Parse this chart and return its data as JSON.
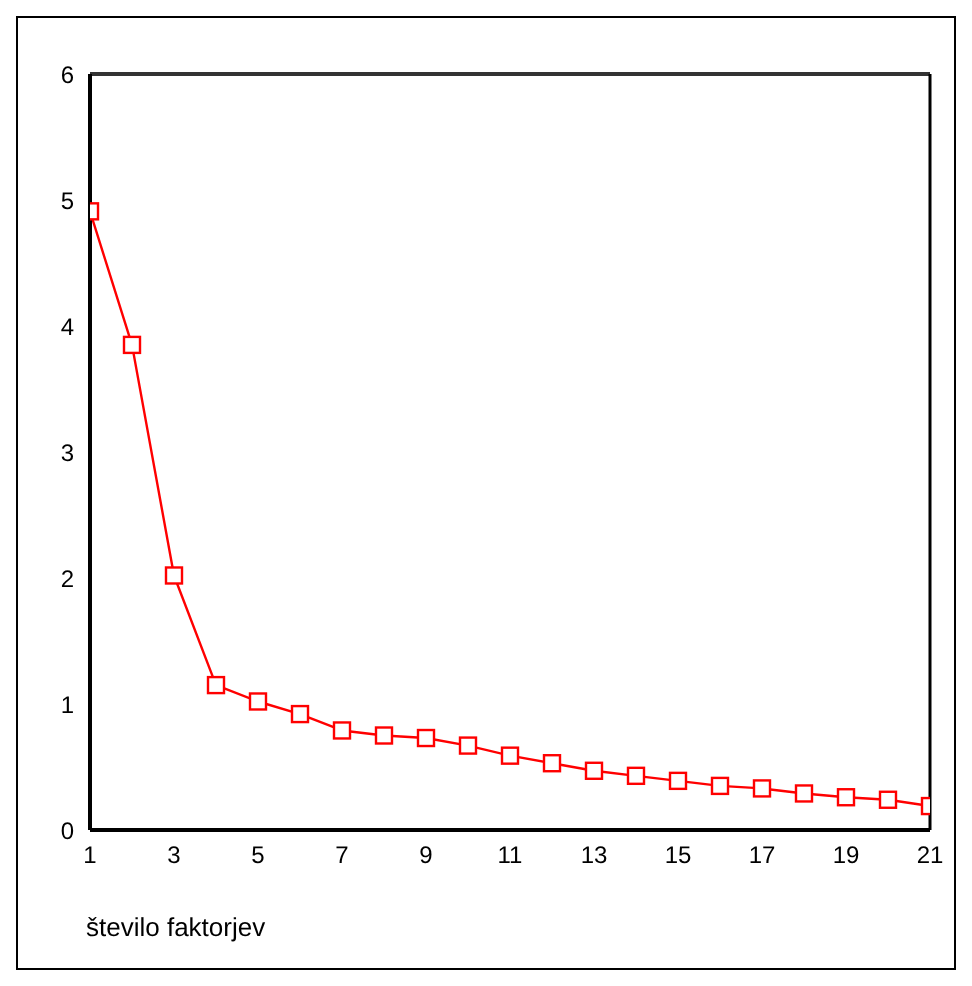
{
  "chart_data": {
    "type": "line",
    "xlabel": "število faktorjev",
    "x": [
      1,
      2,
      3,
      4,
      5,
      6,
      7,
      8,
      9,
      10,
      11,
      12,
      13,
      14,
      15,
      16,
      17,
      18,
      19,
      20,
      21
    ],
    "series": [
      {
        "color": "#ff0000",
        "values": [
          4.91,
          3.85,
          2.02,
          1.15,
          1.02,
          0.92,
          0.79,
          0.75,
          0.73,
          0.67,
          0.59,
          0.53,
          0.47,
          0.43,
          0.39,
          0.35,
          0.33,
          0.29,
          0.26,
          0.24,
          0.19
        ]
      }
    ],
    "xlim": [
      1,
      21
    ],
    "xticks": [
      1,
      3,
      5,
      7,
      9,
      11,
      13,
      15,
      17,
      19,
      21
    ],
    "ylim": [
      0,
      6
    ],
    "yticks": [
      0,
      1,
      2,
      3,
      4,
      5,
      6
    ],
    "grid": false,
    "legend": false,
    "marker": "square",
    "line_style": "solid"
  }
}
